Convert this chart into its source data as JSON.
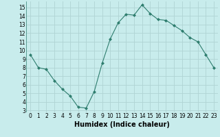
{
  "x": [
    0,
    1,
    2,
    3,
    4,
    5,
    6,
    7,
    8,
    9,
    10,
    11,
    12,
    13,
    14,
    15,
    16,
    17,
    18,
    19,
    20,
    21,
    22,
    23
  ],
  "y": [
    9.5,
    8.0,
    7.8,
    6.5,
    5.5,
    4.7,
    3.4,
    3.3,
    5.2,
    8.5,
    11.3,
    13.2,
    14.2,
    14.1,
    15.3,
    14.3,
    13.6,
    13.5,
    12.9,
    12.3,
    11.5,
    11.0,
    9.5,
    8.0
  ],
  "line_color": "#2e7d6e",
  "marker": "D",
  "marker_size": 2.0,
  "bg_color": "#c8ecec",
  "grid_color": "#b0d4d4",
  "xlabel": "Humidex (Indice chaleur)",
  "xlim": [
    -0.5,
    23.5
  ],
  "ylim": [
    2.8,
    15.7
  ],
  "yticks": [
    3,
    4,
    5,
    6,
    7,
    8,
    9,
    10,
    11,
    12,
    13,
    14,
    15
  ],
  "xticks": [
    0,
    1,
    2,
    3,
    4,
    5,
    6,
    7,
    8,
    9,
    10,
    11,
    12,
    13,
    14,
    15,
    16,
    17,
    18,
    19,
    20,
    21,
    22,
    23
  ],
  "tick_fontsize": 5.5,
  "label_fontsize": 7.0
}
